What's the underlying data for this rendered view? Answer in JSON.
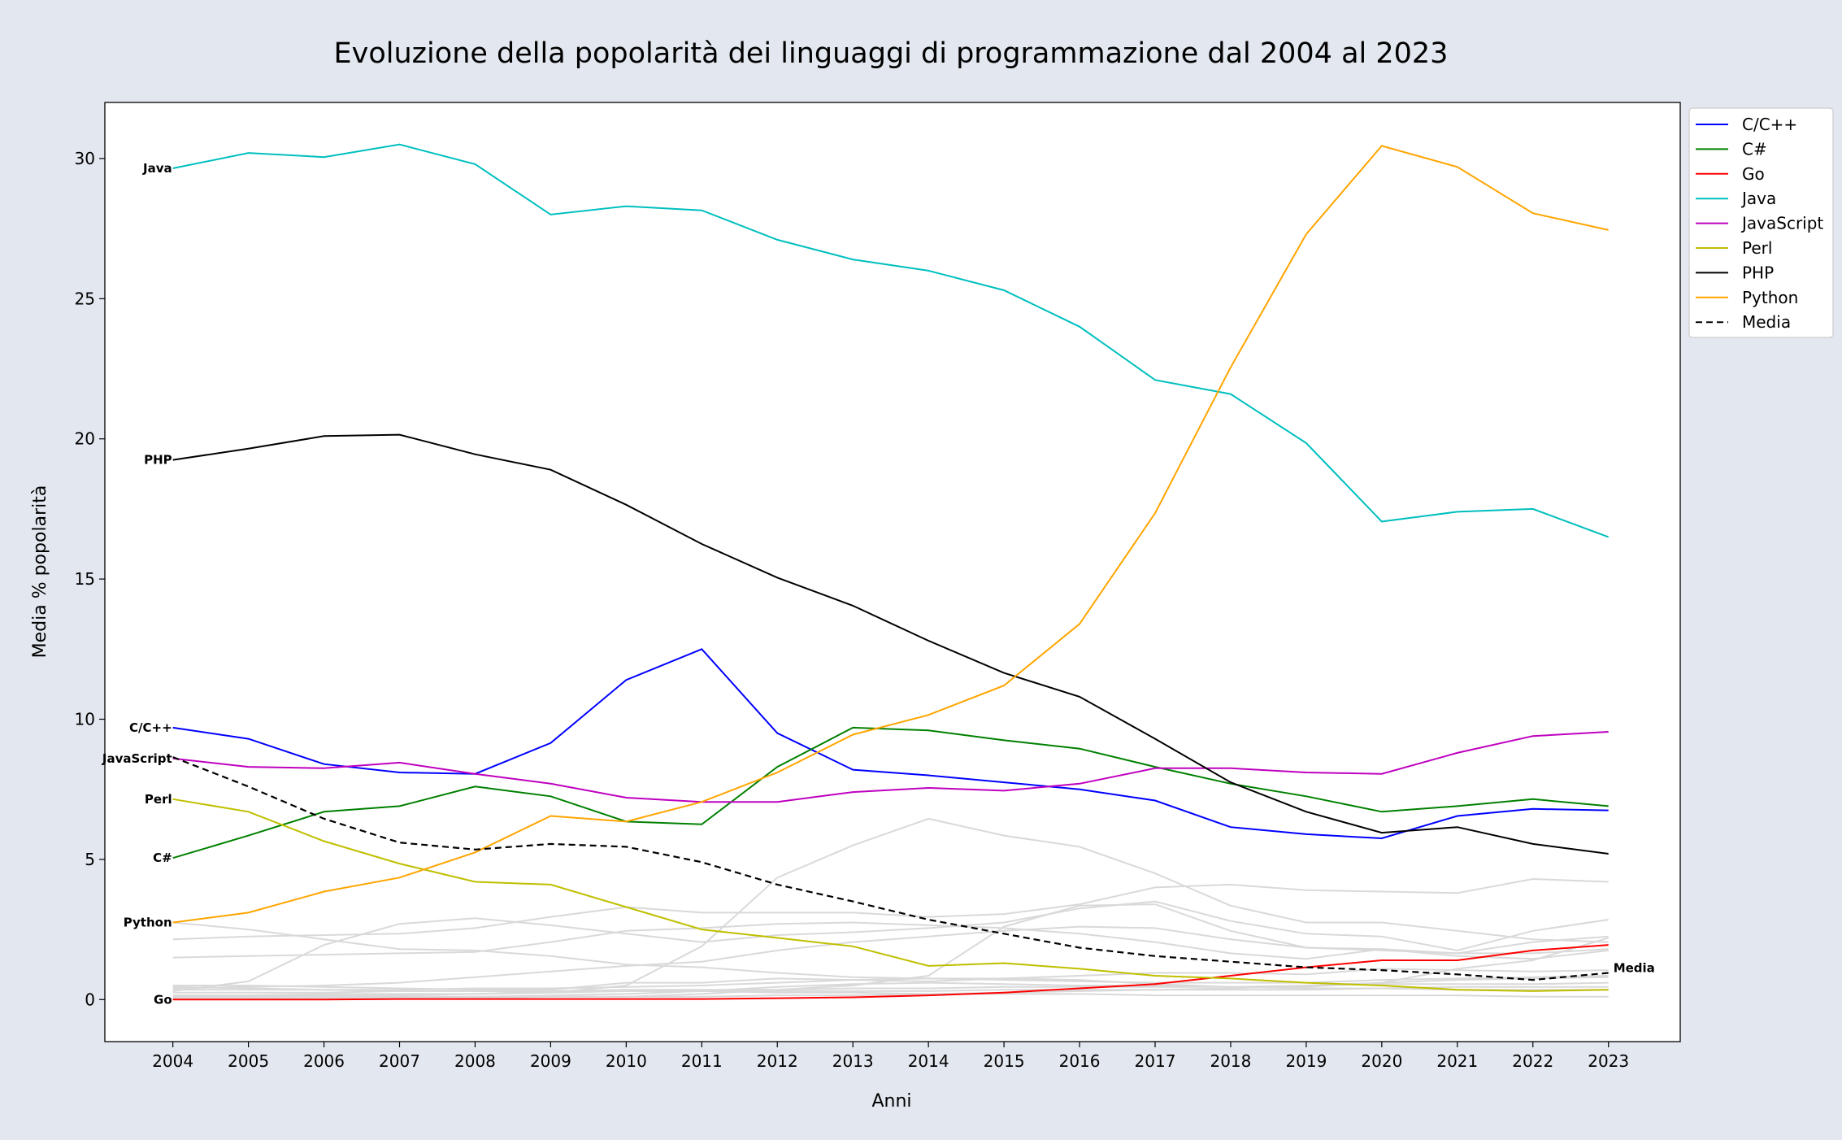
{
  "chart_data": {
    "type": "line",
    "title": "Evoluzione della popolarità dei linguaggi di programmazione dal 2004 al 2023",
    "xlabel": "Anni",
    "ylabel": "Media % popolarità",
    "x": [
      2004,
      2005,
      2006,
      2007,
      2008,
      2009,
      2010,
      2011,
      2012,
      2013,
      2014,
      2015,
      2016,
      2017,
      2018,
      2019,
      2020,
      2021,
      2022,
      2023
    ],
    "xlim": [
      2003.1,
      2023.95
    ],
    "ylim": [
      -1.5,
      32
    ],
    "yticks": [
      0,
      5,
      10,
      15,
      20,
      25,
      30
    ],
    "grid": false,
    "legend_position": "outside-right-top",
    "series": [
      {
        "name": "C/C++",
        "color": "#0000ff",
        "dashed": false,
        "label_left": "C/C++",
        "values": [
          9.7,
          9.3,
          8.4,
          8.1,
          8.05,
          9.15,
          11.4,
          12.5,
          9.5,
          8.2,
          8.0,
          7.75,
          7.5,
          7.1,
          6.15,
          5.9,
          5.75,
          6.55,
          6.8,
          6.75
        ]
      },
      {
        "name": "C#",
        "color": "#008000",
        "dashed": false,
        "label_left": "C#",
        "values": [
          5.05,
          5.85,
          6.7,
          6.9,
          7.6,
          7.25,
          6.35,
          6.25,
          8.3,
          9.7,
          9.6,
          9.25,
          8.95,
          8.3,
          7.7,
          7.25,
          6.7,
          6.9,
          7.15,
          6.9
        ]
      },
      {
        "name": "Go",
        "color": "#ff0000",
        "dashed": false,
        "label_left": "Go",
        "values": [
          0.0,
          0.0,
          0.0,
          0.02,
          0.02,
          0.02,
          0.02,
          0.02,
          0.05,
          0.08,
          0.15,
          0.25,
          0.4,
          0.55,
          0.85,
          1.15,
          1.4,
          1.4,
          1.75,
          1.95
        ]
      },
      {
        "name": "Java",
        "color": "#00bfbf",
        "dashed": false,
        "label_left": "Java",
        "values": [
          29.65,
          30.2,
          30.05,
          30.5,
          29.8,
          28.0,
          28.3,
          28.15,
          27.1,
          26.4,
          26.0,
          25.3,
          24.0,
          22.1,
          21.6,
          19.85,
          17.05,
          17.4,
          17.5,
          16.5
        ]
      },
      {
        "name": "JavaScript",
        "color": "#bf00bf",
        "dashed": false,
        "label_left": "JavaScript",
        "values": [
          8.6,
          8.3,
          8.25,
          8.45,
          8.05,
          7.7,
          7.2,
          7.05,
          7.05,
          7.4,
          7.55,
          7.45,
          7.7,
          8.25,
          8.25,
          8.1,
          8.05,
          8.8,
          9.4,
          9.55
        ]
      },
      {
        "name": "Perl",
        "color": "#bfbf00",
        "dashed": false,
        "label_left": "Perl",
        "values": [
          7.15,
          6.7,
          5.65,
          4.85,
          4.2,
          4.1,
          3.3,
          2.5,
          2.2,
          1.9,
          1.2,
          1.3,
          1.1,
          0.85,
          0.75,
          0.6,
          0.5,
          0.35,
          0.3,
          0.35
        ]
      },
      {
        "name": "PHP",
        "color": "#000000",
        "dashed": false,
        "label_left": "PHP",
        "values": [
          19.25,
          19.65,
          20.1,
          20.15,
          19.45,
          18.9,
          17.65,
          16.25,
          15.05,
          14.05,
          12.8,
          11.65,
          10.8,
          9.3,
          7.75,
          6.7,
          5.95,
          6.15,
          5.55,
          5.2
        ]
      },
      {
        "name": "Python",
        "color": "#ffa500",
        "dashed": false,
        "label_left": "Python",
        "values": [
          2.75,
          3.1,
          3.85,
          4.35,
          5.25,
          6.55,
          6.35,
          7.05,
          8.1,
          9.45,
          10.15,
          11.2,
          13.4,
          17.35,
          22.55,
          27.3,
          30.45,
          29.7,
          28.05,
          27.45
        ]
      },
      {
        "name": "Media",
        "color": "#000000",
        "dashed": true,
        "label_right": "Media",
        "values": [
          8.65,
          7.6,
          6.45,
          5.6,
          5.35,
          5.55,
          5.45,
          4.9,
          4.1,
          3.5,
          2.85,
          2.35,
          1.85,
          1.55,
          1.35,
          1.15,
          1.05,
          0.9,
          0.7,
          0.95
        ]
      }
    ],
    "background_series_color": "#d9d9d9",
    "background_series": [
      {
        "values": [
          2.15,
          2.25,
          2.3,
          2.35,
          2.55,
          2.95,
          3.3,
          3.1,
          3.1,
          3.1,
          2.95,
          3.05,
          3.4,
          4.0,
          4.1,
          3.9,
          3.85,
          3.8,
          4.3,
          4.2
        ]
      },
      {
        "values": [
          0.3,
          0.65,
          1.95,
          2.7,
          2.9,
          2.65,
          2.35,
          2.05,
          2.3,
          2.4,
          2.55,
          2.75,
          3.25,
          3.5,
          2.8,
          2.35,
          2.25,
          1.75,
          2.45,
          2.85
        ]
      },
      {
        "values": [
          1.5,
          1.55,
          1.6,
          1.65,
          1.7,
          2.05,
          2.45,
          2.55,
          2.7,
          2.75,
          2.65,
          2.55,
          2.35,
          2.05,
          1.65,
          1.45,
          1.8,
          1.65,
          2.05,
          2.25
        ]
      },
      {
        "values": [
          0.4,
          0.45,
          0.5,
          0.6,
          0.8,
          1.0,
          1.2,
          1.35,
          1.75,
          2.05,
          2.25,
          2.45,
          2.6,
          2.55,
          2.15,
          1.85,
          1.75,
          1.65,
          1.65,
          1.8
        ]
      },
      {
        "values": [
          0.1,
          0.1,
          0.15,
          0.15,
          0.2,
          0.25,
          0.5,
          1.9,
          4.35,
          5.5,
          6.45,
          5.85,
          5.45,
          4.5,
          3.35,
          2.75,
          2.75,
          2.45,
          2.15,
          2.05
        ]
      },
      {
        "values": [
          0.05,
          0.05,
          0.05,
          0.05,
          0.05,
          0.1,
          0.1,
          0.2,
          0.35,
          0.5,
          0.85,
          2.6,
          3.35,
          3.4,
          2.45,
          1.85,
          1.8,
          1.55,
          1.45,
          1.75
        ]
      },
      {
        "values": [
          2.75,
          2.5,
          2.15,
          1.8,
          1.75,
          1.55,
          1.25,
          1.15,
          0.95,
          0.8,
          0.75,
          0.75,
          0.7,
          0.55,
          0.45,
          0.45,
          0.6,
          1.1,
          1.4,
          2.2
        ]
      },
      {
        "values": [
          0.5,
          0.5,
          0.45,
          0.4,
          0.35,
          0.35,
          0.6,
          0.6,
          0.75,
          0.7,
          0.65,
          0.75,
          0.85,
          0.95,
          0.95,
          0.9,
          1.1,
          1.05,
          1.0,
          1.05
        ]
      },
      {
        "values": [
          0.35,
          0.35,
          0.35,
          0.35,
          0.4,
          0.4,
          0.45,
          0.5,
          0.6,
          0.7,
          0.75,
          0.7,
          0.65,
          0.6,
          0.6,
          0.6,
          0.7,
          0.75,
          0.8,
          0.85
        ]
      },
      {
        "values": [
          0.25,
          0.25,
          0.25,
          0.3,
          0.3,
          0.3,
          0.35,
          0.35,
          0.35,
          0.4,
          0.4,
          0.45,
          0.45,
          0.45,
          0.45,
          0.5,
          0.55,
          0.55,
          0.55,
          0.6
        ]
      },
      {
        "values": [
          0.15,
          0.15,
          0.2,
          0.2,
          0.2,
          0.25,
          0.3,
          0.3,
          0.3,
          0.3,
          0.3,
          0.35,
          0.35,
          0.35,
          0.35,
          0.35,
          0.4,
          0.45,
          0.45,
          0.45
        ]
      },
      {
        "values": [
          0.45,
          0.4,
          0.35,
          0.3,
          0.3,
          0.25,
          0.3,
          0.3,
          0.25,
          0.25,
          0.2,
          0.2,
          0.2,
          0.15,
          0.15,
          0.15,
          0.15,
          0.15,
          0.1,
          0.1
        ]
      },
      {
        "values": [
          0.05,
          0.05,
          0.05,
          0.1,
          0.1,
          0.15,
          0.2,
          0.3,
          0.45,
          0.55,
          0.6,
          0.55,
          0.5,
          0.5,
          0.45,
          0.4,
          0.4,
          0.35,
          0.35,
          0.35
        ]
      },
      {
        "values": [
          0.1,
          0.1,
          0.1,
          0.1,
          0.1,
          0.1,
          0.1,
          0.1,
          0.15,
          0.15,
          0.2,
          0.25,
          0.3,
          0.35,
          0.4,
          0.5,
          0.6,
          0.7,
          0.75,
          0.8
        ]
      }
    ]
  }
}
